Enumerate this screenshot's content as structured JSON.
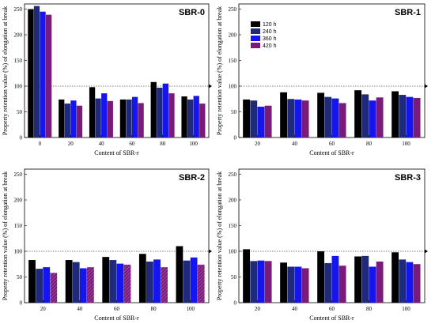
{
  "legend": {
    "entries": [
      "120 h",
      "240 h",
      "360 h",
      "420 h"
    ]
  },
  "series_colors": [
    "#000000",
    "#1f2a7a",
    "#1515f0",
    "#7a1a7a"
  ],
  "reference_line": 100,
  "chart_data": [
    {
      "type": "bar",
      "title": "SBR-0",
      "xlabel": "Content of SBR-r",
      "ylabel": "Property retention value (%) of elongation at break",
      "categories": [
        "0",
        "20",
        "40",
        "60",
        "80",
        "100"
      ],
      "ylim": [
        0,
        260
      ],
      "yticks": [
        0,
        50,
        100,
        150,
        200,
        250
      ],
      "legend_position": "top-right",
      "series": [
        {
          "name": "120 h",
          "values": [
            250,
            74,
            98,
            74,
            108,
            80
          ]
        },
        {
          "name": "240 h",
          "values": [
            256,
            66,
            76,
            74,
            97,
            74
          ]
        },
        {
          "name": "360 h",
          "values": [
            245,
            72,
            86,
            79,
            105,
            81
          ]
        },
        {
          "name": "420 h",
          "values": [
            239,
            62,
            71,
            67,
            86,
            66
          ]
        }
      ]
    },
    {
      "type": "bar",
      "title": "SBR-1",
      "xlabel": "Content of SBR-r",
      "ylabel": "Property retention value (%) of elongation at break",
      "categories": [
        "20",
        "40",
        "60",
        "80",
        "100"
      ],
      "ylim": [
        0,
        260
      ],
      "yticks": [
        0,
        50,
        100,
        150,
        200,
        250
      ],
      "series": [
        {
          "name": "120 h",
          "values": [
            74,
            88,
            87,
            92,
            90
          ]
        },
        {
          "name": "240 h",
          "values": [
            72,
            75,
            79,
            84,
            83
          ]
        },
        {
          "name": "360 h",
          "values": [
            60,
            74,
            76,
            72,
            79
          ]
        },
        {
          "name": "420 h",
          "values": [
            62,
            72,
            67,
            78,
            77
          ]
        }
      ]
    },
    {
      "type": "bar",
      "title": "SBR-2",
      "xlabel": "Content of SBR-r",
      "ylabel": "Property retention value (%) of elongation at break",
      "categories": [
        "20",
        "40",
        "60",
        "80",
        "100"
      ],
      "ylim": [
        0,
        260
      ],
      "yticks": [
        0,
        50,
        100,
        150,
        200,
        250
      ],
      "series": [
        {
          "name": "120 h",
          "values": [
            83,
            83,
            89,
            95,
            110
          ]
        },
        {
          "name": "240 h",
          "values": [
            66,
            79,
            83,
            80,
            82
          ]
        },
        {
          "name": "360 h",
          "values": [
            69,
            67,
            76,
            84,
            88
          ]
        },
        {
          "name": "420 h",
          "values": [
            58,
            69,
            74,
            69,
            74
          ]
        }
      ]
    },
    {
      "type": "bar",
      "title": "SBR-3",
      "xlabel": "Content of SBR-r",
      "ylabel": "Property retention value (%) of elongation at break",
      "categories": [
        "20",
        "40",
        "60",
        "80",
        "100"
      ],
      "ylim": [
        0,
        260
      ],
      "yticks": [
        0,
        50,
        100,
        150,
        200,
        250
      ],
      "series": [
        {
          "name": "120 h",
          "values": [
            104,
            78,
            100,
            90,
            98
          ]
        },
        {
          "name": "240 h",
          "values": [
            81,
            70,
            77,
            91,
            84
          ]
        },
        {
          "name": "360 h",
          "values": [
            82,
            70,
            91,
            70,
            79
          ]
        },
        {
          "name": "420 h",
          "values": [
            81,
            67,
            72,
            80,
            75
          ]
        }
      ]
    }
  ]
}
